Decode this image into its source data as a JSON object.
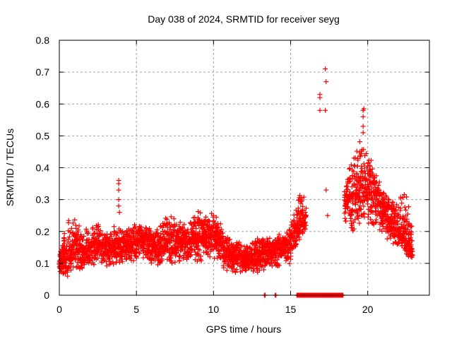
{
  "chart_data": {
    "type": "scatter",
    "title": "Day 038 of 2024, SRMTID for receiver seyg",
    "xlabel": "GPS time / hours",
    "ylabel": "SRMTID / TECUs",
    "xlim": [
      0,
      24
    ],
    "ylim": [
      0,
      0.8
    ],
    "xticks": [
      0,
      5,
      10,
      15,
      20
    ],
    "xtick_labels": [
      "0",
      "5",
      "10",
      "15",
      "20"
    ],
    "yticks": [
      0,
      0.1,
      0.2,
      0.3,
      0.4,
      0.5,
      0.6,
      0.7,
      0.8
    ],
    "ytick_labels": [
      "0",
      "0.1",
      "0.2",
      "0.3",
      "0.4",
      "0.5",
      "0.6",
      "0.7",
      "0.8"
    ],
    "grid": true,
    "marker": "+",
    "series_color": "#ff0000",
    "legend": "none",
    "envelope": [
      {
        "x": 0.0,
        "low": 0.06,
        "mid": 0.1,
        "high": 0.13
      },
      {
        "x": 0.5,
        "low": 0.05,
        "mid": 0.12,
        "high": 0.24
      },
      {
        "x": 1.0,
        "low": 0.07,
        "mid": 0.16,
        "high": 0.25
      },
      {
        "x": 1.5,
        "low": 0.07,
        "mid": 0.13,
        "high": 0.2
      },
      {
        "x": 2.0,
        "low": 0.09,
        "mid": 0.15,
        "high": 0.22
      },
      {
        "x": 2.5,
        "low": 0.1,
        "mid": 0.17,
        "high": 0.23
      },
      {
        "x": 3.0,
        "low": 0.08,
        "mid": 0.15,
        "high": 0.21
      },
      {
        "x": 3.5,
        "low": 0.09,
        "mid": 0.14,
        "high": 0.22
      },
      {
        "x": 4.0,
        "low": 0.08,
        "mid": 0.15,
        "high": 0.22
      },
      {
        "x": 4.5,
        "low": 0.1,
        "mid": 0.16,
        "high": 0.21
      },
      {
        "x": 5.0,
        "low": 0.1,
        "mid": 0.17,
        "high": 0.23
      },
      {
        "x": 5.5,
        "low": 0.11,
        "mid": 0.17,
        "high": 0.22
      },
      {
        "x": 6.0,
        "low": 0.1,
        "mid": 0.16,
        "high": 0.21
      },
      {
        "x": 6.5,
        "low": 0.09,
        "mid": 0.15,
        "high": 0.22
      },
      {
        "x": 7.0,
        "low": 0.1,
        "mid": 0.18,
        "high": 0.27
      },
      {
        "x": 7.5,
        "low": 0.09,
        "mid": 0.16,
        "high": 0.24
      },
      {
        "x": 8.0,
        "low": 0.1,
        "mid": 0.17,
        "high": 0.24
      },
      {
        "x": 8.5,
        "low": 0.11,
        "mid": 0.17,
        "high": 0.24
      },
      {
        "x": 9.0,
        "low": 0.09,
        "mid": 0.18,
        "high": 0.28
      },
      {
        "x": 9.5,
        "low": 0.12,
        "mid": 0.19,
        "high": 0.26
      },
      {
        "x": 10.0,
        "low": 0.11,
        "mid": 0.18,
        "high": 0.26
      },
      {
        "x": 10.5,
        "low": 0.08,
        "mid": 0.16,
        "high": 0.24
      },
      {
        "x": 11.0,
        "low": 0.07,
        "mid": 0.13,
        "high": 0.19
      },
      {
        "x": 11.5,
        "low": 0.07,
        "mid": 0.12,
        "high": 0.18
      },
      {
        "x": 12.0,
        "low": 0.06,
        "mid": 0.11,
        "high": 0.16
      },
      {
        "x": 12.5,
        "low": 0.07,
        "mid": 0.12,
        "high": 0.18
      },
      {
        "x": 13.0,
        "low": 0.07,
        "mid": 0.13,
        "high": 0.18
      },
      {
        "x": 13.5,
        "low": 0.08,
        "mid": 0.14,
        "high": 0.19
      },
      {
        "x": 14.0,
        "low": 0.08,
        "mid": 0.14,
        "high": 0.19
      },
      {
        "x": 14.5,
        "low": 0.09,
        "mid": 0.15,
        "high": 0.2
      },
      {
        "x": 15.0,
        "low": 0.1,
        "mid": 0.16,
        "high": 0.22
      },
      {
        "x": 15.5,
        "low": 0.16,
        "mid": 0.22,
        "high": 0.33
      },
      {
        "x": 16.0,
        "low": 0.19,
        "mid": 0.25,
        "high": 0.33
      },
      {
        "x": 18.5,
        "low": 0.22,
        "mid": 0.29,
        "high": 0.36
      },
      {
        "x": 19.0,
        "low": 0.19,
        "mid": 0.31,
        "high": 0.44
      },
      {
        "x": 19.5,
        "low": 0.2,
        "mid": 0.34,
        "high": 0.5
      },
      {
        "x": 20.0,
        "low": 0.2,
        "mid": 0.34,
        "high": 0.45
      },
      {
        "x": 20.5,
        "low": 0.2,
        "mid": 0.3,
        "high": 0.41
      },
      {
        "x": 21.0,
        "low": 0.19,
        "mid": 0.27,
        "high": 0.33
      },
      {
        "x": 21.5,
        "low": 0.16,
        "mid": 0.23,
        "high": 0.3
      },
      {
        "x": 22.0,
        "low": 0.15,
        "mid": 0.2,
        "high": 0.32
      },
      {
        "x": 22.5,
        "low": 0.12,
        "mid": 0.17,
        "high": 0.33
      },
      {
        "x": 22.9,
        "low": 0.1,
        "mid": 0.14,
        "high": 0.22
      }
    ],
    "notable_points": [
      {
        "x": 3.85,
        "y": 0.36
      },
      {
        "x": 3.85,
        "y": 0.35
      },
      {
        "x": 3.85,
        "y": 0.33
      },
      {
        "x": 3.85,
        "y": 0.3
      },
      {
        "x": 3.85,
        "y": 0.28
      },
      {
        "x": 3.9,
        "y": 0.26
      },
      {
        "x": 16.9,
        "y": 0.63
      },
      {
        "x": 16.9,
        "y": 0.62
      },
      {
        "x": 16.9,
        "y": 0.58
      },
      {
        "x": 17.25,
        "y": 0.71
      },
      {
        "x": 17.3,
        "y": 0.67
      },
      {
        "x": 17.25,
        "y": 0.58
      },
      {
        "x": 17.3,
        "y": 0.33
      },
      {
        "x": 17.4,
        "y": 0.25
      },
      {
        "x": 19.75,
        "y": 0.585
      },
      {
        "x": 19.7,
        "y": 0.58
      },
      {
        "x": 19.7,
        "y": 0.56
      },
      {
        "x": 19.7,
        "y": 0.53
      },
      {
        "x": 19.7,
        "y": 0.51
      }
    ],
    "zero_values": {
      "isolated_x": [
        13.3,
        14.0
      ],
      "range": [
        15.4,
        18.4
      ]
    }
  }
}
